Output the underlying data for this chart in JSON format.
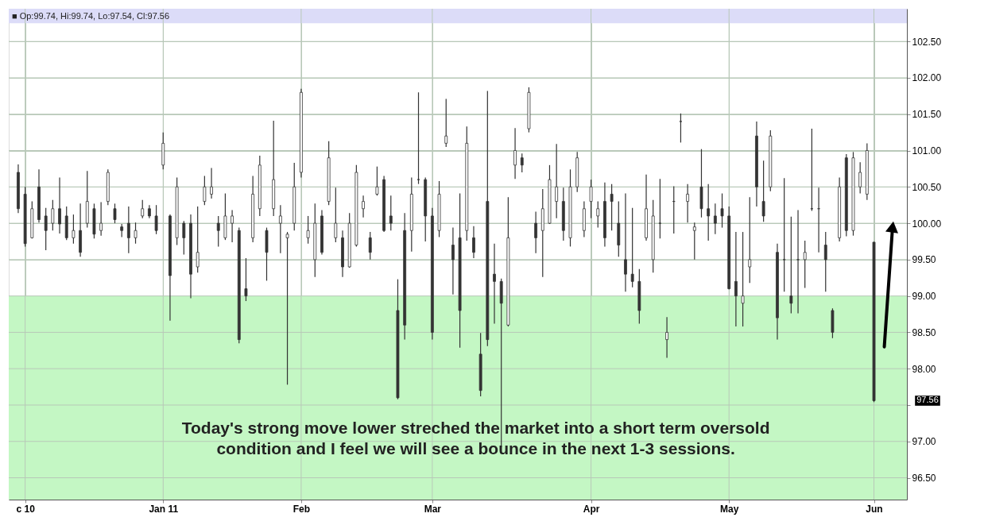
{
  "chart_data": {
    "type": "candlestick",
    "categories": [
      null,
      "c 10",
      null,
      null,
      null,
      null,
      null,
      null,
      null,
      null,
      null,
      null,
      null,
      null,
      null,
      null,
      null,
      null,
      null,
      null,
      null,
      "Jan 11",
      null,
      null,
      null,
      null,
      null,
      null,
      null,
      null,
      null,
      null,
      null,
      null,
      null,
      null,
      null,
      null,
      null,
      null,
      null,
      "Feb",
      null,
      null,
      null,
      null,
      null,
      null,
      null,
      null,
      null,
      null,
      null,
      null,
      null,
      null,
      null,
      null,
      null,
      null,
      "Mar",
      null,
      null,
      null,
      null,
      null,
      null,
      null,
      null,
      null,
      null,
      null,
      null,
      null,
      null,
      null,
      null,
      null,
      null,
      null,
      null,
      null,
      null,
      "Apr",
      null,
      null,
      null,
      null,
      null,
      null,
      null,
      null,
      null,
      null,
      null,
      null,
      null,
      null,
      null,
      null,
      null,
      null,
      null,
      "May",
      null,
      null,
      null,
      null,
      null,
      null,
      null,
      null,
      null,
      null,
      null,
      null,
      null,
      null,
      null,
      null,
      null,
      null,
      null,
      null,
      "Jun"
    ],
    "ohlc": [
      [
        100.7,
        100.81,
        100.14,
        100.2
      ],
      [
        100.4,
        100.5,
        99.68,
        99.72
      ],
      [
        99.8,
        100.3,
        99.79,
        100.2
      ],
      [
        100.5,
        100.74,
        100.01,
        100.05
      ],
      [
        100.1,
        100.21,
        99.63,
        99.9
      ],
      [
        100.0,
        100.32,
        99.9,
        100.2
      ],
      [
        100.2,
        100.63,
        99.86,
        99.99
      ],
      [
        100.1,
        100.23,
        99.77,
        99.8
      ],
      [
        99.8,
        100.12,
        99.72,
        99.9
      ],
      [
        99.9,
        100.27,
        99.54,
        99.6
      ],
      [
        100.0,
        100.72,
        99.94,
        100.3
      ],
      [
        100.2,
        100.27,
        99.79,
        99.85
      ],
      [
        99.9,
        100.29,
        99.83,
        100.0
      ],
      [
        100.3,
        100.74,
        100.25,
        100.7
      ],
      [
        100.2,
        100.27,
        100.0,
        100.05
      ],
      [
        99.95,
        99.99,
        99.81,
        99.9
      ],
      [
        100.0,
        100.23,
        99.59,
        99.8
      ],
      [
        99.8,
        100.01,
        99.72,
        99.9
      ],
      [
        100.1,
        100.32,
        100.07,
        100.2
      ],
      [
        100.2,
        100.25,
        100.07,
        100.1
      ],
      [
        100.1,
        100.25,
        99.85,
        99.9
      ],
      [
        100.8,
        101.25,
        100.74,
        101.1
      ],
      [
        100.1,
        100.12,
        98.66,
        99.28
      ],
      [
        99.8,
        100.63,
        99.7,
        100.5
      ],
      [
        100.0,
        100.03,
        99.57,
        99.8
      ],
      [
        100.0,
        100.12,
        98.97,
        99.3
      ],
      [
        99.4,
        100.23,
        99.32,
        99.6
      ],
      [
        100.3,
        100.65,
        100.25,
        100.5
      ],
      [
        100.4,
        100.76,
        100.34,
        100.5
      ],
      [
        100.0,
        100.1,
        99.68,
        99.9
      ],
      [
        99.8,
        100.41,
        99.77,
        100.1
      ],
      [
        100.0,
        100.18,
        99.74,
        100.1
      ],
      [
        99.9,
        99.94,
        98.35,
        98.4
      ],
      [
        99.1,
        99.52,
        98.93,
        99.0
      ],
      [
        99.8,
        100.65,
        99.74,
        100.4
      ],
      [
        100.2,
        100.93,
        100.1,
        100.8
      ],
      [
        99.9,
        99.94,
        99.21,
        99.6
      ],
      [
        100.2,
        101.41,
        100.1,
        100.6
      ],
      [
        100.0,
        100.25,
        99.59,
        100.1
      ],
      [
        99.8,
        99.88,
        97.78,
        99.85
      ],
      [
        100.0,
        100.83,
        99.9,
        100.5
      ],
      [
        100.7,
        101.85,
        100.63,
        101.8
      ],
      [
        99.8,
        100.1,
        99.72,
        99.9
      ],
      [
        99.5,
        100.27,
        99.26,
        100.0
      ],
      [
        100.1,
        100.18,
        99.57,
        99.6
      ],
      [
        100.3,
        101.13,
        100.25,
        100.9
      ],
      [
        99.8,
        100.49,
        99.74,
        100.0
      ],
      [
        99.8,
        99.9,
        99.26,
        99.4
      ],
      [
        99.4,
        100.14,
        99.39,
        100.0
      ],
      [
        99.7,
        100.8,
        99.68,
        100.7
      ],
      [
        100.2,
        100.38,
        100.08,
        100.3
      ],
      [
        99.8,
        99.88,
        99.5,
        99.6
      ],
      [
        100.4,
        100.78,
        100.38,
        100.5
      ],
      [
        100.6,
        100.65,
        99.88,
        99.9
      ],
      [
        100.1,
        100.38,
        99.9,
        100.0
      ],
      [
        98.8,
        99.23,
        97.58,
        97.6
      ],
      [
        99.9,
        100.14,
        98.4,
        98.6
      ],
      [
        99.9,
        100.63,
        99.61,
        100.4
      ],
      [
        100.6,
        101.8,
        100.54,
        100.6
      ],
      [
        100.6,
        100.63,
        99.75,
        100.1
      ],
      [
        100.1,
        100.21,
        98.4,
        98.5
      ],
      [
        99.9,
        100.58,
        99.81,
        100.4
      ],
      [
        101.1,
        101.71,
        101.05,
        101.2
      ],
      [
        99.7,
        99.94,
        99.02,
        99.5
      ],
      [
        99.8,
        100.41,
        98.29,
        98.8
      ],
      [
        99.9,
        101.33,
        99.76,
        101.1
      ],
      [
        99.8,
        99.96,
        99.52,
        99.6
      ],
      [
        98.2,
        98.49,
        97.62,
        97.7
      ],
      [
        100.3,
        101.82,
        98.31,
        98.4
      ],
      [
        99.3,
        99.72,
        98.62,
        99.2
      ],
      [
        99.2,
        99.24,
        96.92,
        98.9
      ],
      [
        98.6,
        100.36,
        98.58,
        99.8
      ],
      [
        100.8,
        101.31,
        100.61,
        101.0
      ],
      [
        100.9,
        100.96,
        100.7,
        100.8
      ],
      [
        101.3,
        101.87,
        101.25,
        101.8
      ],
      [
        100.0,
        100.16,
        99.59,
        99.8
      ],
      [
        99.9,
        100.47,
        99.26,
        100.2
      ],
      [
        100.0,
        100.8,
        99.99,
        100.6
      ],
      [
        100.3,
        101.09,
        100.07,
        100.5
      ],
      [
        100.3,
        100.49,
        99.76,
        99.9
      ],
      [
        99.8,
        100.74,
        99.68,
        100.5
      ],
      [
        100.5,
        100.98,
        100.43,
        100.9
      ],
      [
        99.9,
        100.3,
        99.81,
        100.2
      ],
      [
        100.3,
        100.6,
        100.07,
        100.5
      ],
      [
        100.1,
        100.3,
        99.94,
        100.2
      ],
      [
        100.3,
        100.56,
        99.68,
        99.8
      ],
      [
        100.4,
        100.54,
        99.9,
        100.3
      ],
      [
        100.0,
        100.3,
        99.54,
        99.7
      ],
      [
        99.5,
        100.41,
        99.06,
        99.3
      ],
      [
        99.3,
        100.21,
        99.12,
        99.2
      ],
      [
        99.2,
        99.37,
        98.62,
        98.8
      ],
      [
        99.8,
        100.67,
        99.76,
        100.2
      ],
      [
        99.5,
        100.32,
        99.32,
        100.1
      ],
      [
        100.0,
        100.61,
        99.79,
        100.0
      ],
      [
        98.4,
        98.71,
        98.15,
        98.5
      ],
      [
        100.3,
        100.51,
        99.86,
        100.3
      ],
      [
        101.4,
        101.51,
        101.11,
        101.4
      ],
      [
        100.3,
        100.54,
        100.01,
        100.4
      ],
      [
        99.9,
        100.01,
        99.5,
        99.95
      ],
      [
        100.5,
        101.02,
        100.08,
        100.2
      ],
      [
        100.2,
        100.54,
        99.76,
        100.1
      ],
      [
        100.1,
        100.27,
        99.85,
        100.0
      ],
      [
        100.2,
        100.41,
        99.94,
        100.1
      ],
      [
        100.1,
        100.23,
        99.09,
        99.1
      ],
      [
        99.2,
        99.88,
        98.58,
        99.0
      ],
      [
        98.9,
        99.88,
        98.58,
        99.0
      ],
      [
        99.4,
        100.36,
        99.18,
        99.5
      ],
      [
        101.2,
        101.4,
        100.23,
        100.5
      ],
      [
        100.3,
        100.86,
        100.02,
        100.1
      ],
      [
        100.5,
        101.28,
        100.44,
        101.2
      ],
      [
        99.6,
        99.72,
        98.4,
        98.7
      ],
      [
        99.5,
        100.62,
        99.06,
        99.5
      ],
      [
        99.0,
        100.09,
        98.76,
        98.9
      ],
      [
        99.5,
        100.18,
        98.76,
        99.5
      ],
      [
        99.5,
        99.76,
        99.11,
        99.6
      ],
      [
        100.2,
        101.3,
        100.17,
        100.2
      ],
      [
        100.2,
        100.49,
        99.6,
        100.2
      ],
      [
        99.7,
        99.88,
        99.06,
        99.5
      ],
      [
        98.8,
        98.83,
        98.42,
        98.5
      ],
      [
        99.8,
        100.63,
        99.75,
        100.5
      ],
      [
        100.9,
        100.95,
        99.82,
        99.9
      ],
      [
        99.9,
        100.98,
        99.83,
        100.9
      ],
      [
        100.5,
        100.84,
        100.41,
        100.7
      ],
      [
        100.4,
        101.1,
        100.32,
        101.0
      ],
      [
        99.74,
        99.74,
        97.54,
        97.56
      ]
    ],
    "color": "#333333",
    "ylim": [
      96.2,
      102.95
    ],
    "yticks": [
      {
        "value": 96.5,
        "label": "96.50"
      },
      {
        "value": 97,
        "label": "97.00"
      },
      {
        "value": 97.5,
        "label": null
      },
      {
        "value": 98,
        "label": "98.00"
      },
      {
        "value": 98.5,
        "label": "98.50"
      },
      {
        "value": 99,
        "label": "99.00"
      },
      {
        "value": 99.5,
        "label": "99.50"
      },
      {
        "value": 100,
        "label": "100.00"
      },
      {
        "value": 100.5,
        "label": "100.50"
      },
      {
        "value": 101,
        "label": "101.00"
      },
      {
        "value": 101.5,
        "label": "101.50"
      },
      {
        "value": 102,
        "label": "102.00"
      },
      {
        "value": 102.5,
        "label": "102.50"
      }
    ],
    "grid": true,
    "bands": [
      {
        "axis": "y",
        "from": 96.2,
        "to": 99,
        "color": "#c4f7c4"
      },
      {
        "axis": "y",
        "from": 102.75,
        "to": 102.95,
        "color": "#dcdcf8"
      }
    ],
    "annotations": [
      "■ Op:99.74, Hi:99.74, Lo:97.54, Cl:97.56",
      "Today's strong move lower streched the market into a short term oversold\ncondition and I feel we will see a bounce in the next 1-3 sessions.",
      "97.56"
    ]
  }
}
